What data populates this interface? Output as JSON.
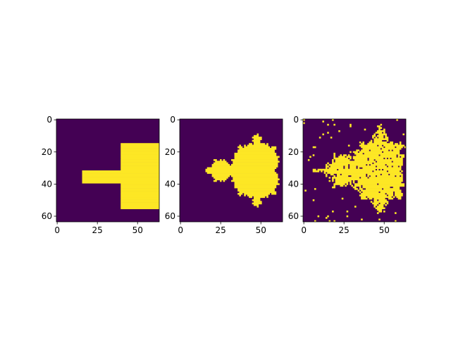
{
  "colors": {
    "background": "#ffffff",
    "low": "#440154",
    "high": "#fde725",
    "axis": "#000000"
  },
  "chart_data": [
    {
      "type": "heatmap",
      "grid": [
        64,
        64
      ],
      "xlim": [
        -0.5,
        63.5
      ],
      "ylim": [
        63.5,
        -0.5
      ],
      "x_ticks": [
        0,
        25,
        50
      ],
      "y_ticks": [
        0,
        20,
        40,
        60
      ],
      "x_tick_labels": [
        "0",
        "25",
        "50"
      ],
      "y_tick_labels": [
        "0",
        "20",
        "40",
        "60"
      ],
      "values_description_rects": [
        {
          "x0": 40,
          "x1": 64,
          "y0": 15,
          "y1": 56,
          "value": 1
        },
        {
          "x0": 16,
          "x1": 40,
          "y0": 32,
          "y1": 40,
          "value": 1
        }
      ]
    },
    {
      "type": "heatmap",
      "grid": [
        64,
        64
      ],
      "xlim": [
        -0.5,
        63.5
      ],
      "ylim": [
        63.5,
        -0.5
      ],
      "x_ticks": [
        0,
        25,
        50
      ],
      "y_ticks": [
        0,
        20,
        40,
        60
      ],
      "x_tick_labels": [
        "0",
        "25",
        "50"
      ],
      "y_tick_labels": [
        "0",
        "20",
        "40",
        "60"
      ],
      "set": "mandelbrot",
      "x_range": [
        -2.0,
        0.5
      ],
      "y_range": [
        -1.25,
        1.25
      ],
      "max_iter": 60
    },
    {
      "type": "heatmap",
      "grid": [
        64,
        64
      ],
      "xlim": [
        -0.5,
        63.5
      ],
      "ylim": [
        63.5,
        -0.5
      ],
      "x_ticks": [
        0,
        25,
        50
      ],
      "y_ticks": [
        0,
        20,
        40,
        60
      ],
      "x_tick_labels": [
        "0",
        "25",
        "50"
      ],
      "y_tick_labels": [
        "0",
        "20",
        "40",
        "60"
      ],
      "set": "mandelbrot-approx",
      "x_range": [
        -2.0,
        0.5
      ],
      "y_range": [
        -1.25,
        1.25
      ],
      "max_iter": 60
    }
  ]
}
